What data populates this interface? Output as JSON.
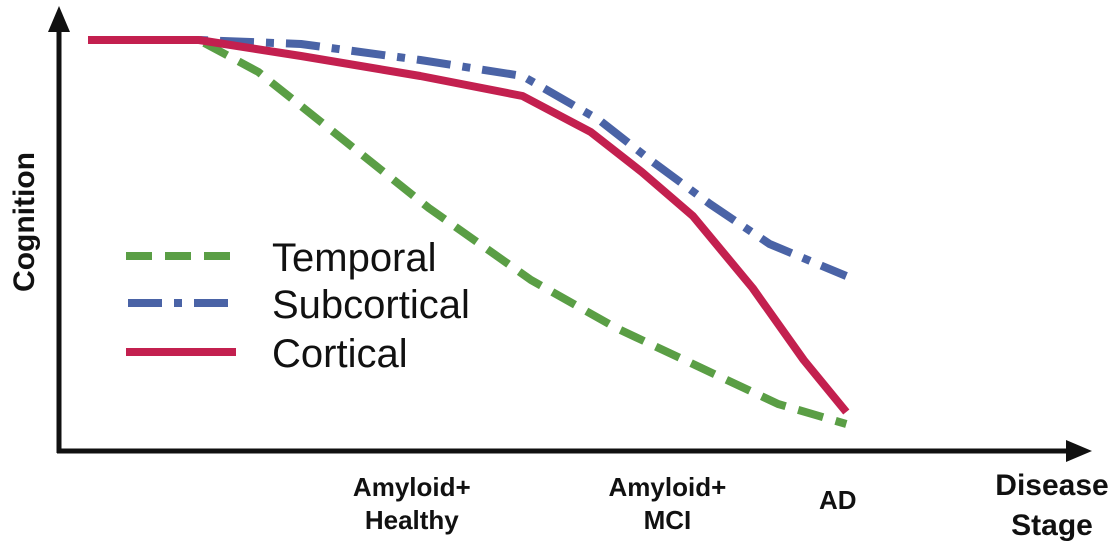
{
  "chart_data": {
    "type": "line",
    "title": "",
    "ylabel": "Cognition",
    "xlabel": [
      "Disease",
      "Stage"
    ],
    "x_range": [
      0,
      100
    ],
    "y_range": [
      0,
      100
    ],
    "grid": false,
    "legend_position": "center-left",
    "categories": [
      {
        "id": "amyloid-healthy",
        "x": 38,
        "lines": [
          "Amyloid+",
          "Healthy"
        ]
      },
      {
        "id": "amyloid-mci",
        "x": 68,
        "lines": [
          "Amyloid+",
          "MCI"
        ]
      },
      {
        "id": "ad",
        "x": 88,
        "lines": [
          "AD"
        ]
      }
    ],
    "series": [
      {
        "name": "Temporal",
        "color": "#5a9e45",
        "style": "dashed",
        "points": [
          [
            0,
            100
          ],
          [
            6,
            100
          ],
          [
            13,
            100
          ],
          [
            20,
            92
          ],
          [
            30,
            75
          ],
          [
            40,
            58
          ],
          [
            52,
            40
          ],
          [
            62,
            28
          ],
          [
            72,
            18
          ],
          [
            81,
            9
          ],
          [
            89,
            4
          ]
        ]
      },
      {
        "name": "Subcortical",
        "color": "#4a63a6",
        "style": "dashdot",
        "points": [
          [
            0,
            100
          ],
          [
            13,
            100
          ],
          [
            25,
            99
          ],
          [
            39,
            95
          ],
          [
            51,
            91
          ],
          [
            60,
            80
          ],
          [
            66,
            70
          ],
          [
            73,
            59
          ],
          [
            80,
            49
          ],
          [
            89,
            41
          ]
        ]
      },
      {
        "name": "Cortical",
        "color": "#c3204f",
        "style": "solid",
        "points": [
          [
            0,
            100
          ],
          [
            13,
            100
          ],
          [
            25,
            96
          ],
          [
            39,
            91
          ],
          [
            51,
            86
          ],
          [
            59,
            77
          ],
          [
            65,
            67
          ],
          [
            71,
            56
          ],
          [
            78,
            38
          ],
          [
            84,
            20
          ],
          [
            89,
            7
          ]
        ]
      }
    ]
  }
}
